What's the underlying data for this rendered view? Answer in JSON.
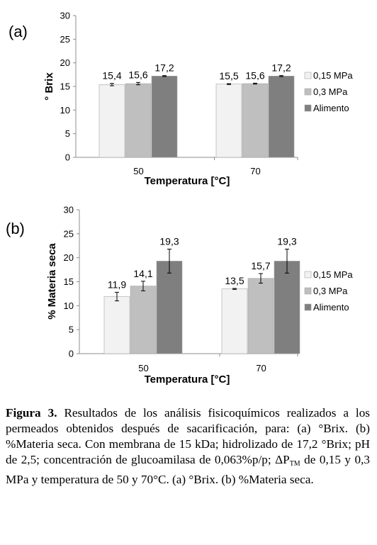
{
  "chart_data": [
    {
      "type": "bar",
      "panel_label": "(a)",
      "categories": [
        "50",
        "70"
      ],
      "series": [
        {
          "name": "0,15 MPa",
          "values": [
            15.4,
            15.5
          ],
          "labels": [
            "15,4",
            "15,5"
          ],
          "errors": [
            0.25,
            0.1
          ],
          "color": "#f2f2f2"
        },
        {
          "name": "0,3 MPa",
          "values": [
            15.6,
            15.6
          ],
          "labels": [
            "15,6",
            "15,6"
          ],
          "errors": [
            0.25,
            0.1
          ],
          "color": "#bfbfbf"
        },
        {
          "name": "Alimento",
          "values": [
            17.2,
            17.2
          ],
          "labels": [
            "17,2",
            "17,2"
          ],
          "errors": [
            0.1,
            0.1
          ],
          "color": "#7f7f7f"
        }
      ],
      "xlabel": "Temperatura [°C]",
      "ylabel": "° Brix",
      "ylim": [
        0,
        30
      ],
      "yticks": [
        "0",
        "5",
        "10",
        "15",
        "20",
        "25",
        "30"
      ],
      "grid": false,
      "legend": "right"
    },
    {
      "type": "bar",
      "panel_label": "(b)",
      "categories": [
        "50",
        "70"
      ],
      "series": [
        {
          "name": "0,15 MPa",
          "values": [
            11.9,
            13.5
          ],
          "labels": [
            "11,9",
            "13,5"
          ],
          "errors": [
            0.9,
            0.1
          ],
          "color": "#f2f2f2"
        },
        {
          "name": "0,3 MPa",
          "values": [
            14.1,
            15.7
          ],
          "labels": [
            "14,1",
            "15,7"
          ],
          "errors": [
            1.0,
            1.0
          ],
          "color": "#bfbfbf"
        },
        {
          "name": "Alimento",
          "values": [
            19.3,
            19.3
          ],
          "labels": [
            "19,3",
            "19,3"
          ],
          "errors": [
            2.5,
            2.5
          ],
          "color": "#7f7f7f"
        }
      ],
      "xlabel": "Temperatura [°C]",
      "ylabel": "% Materia seca",
      "ylim": [
        0,
        30
      ],
      "yticks": [
        "0",
        "5",
        "10",
        "15",
        "20",
        "25",
        "30"
      ],
      "grid": false,
      "legend": "right"
    }
  ],
  "caption": {
    "figure_label": "Figura 3.",
    "text_before_sub": " Resultados de los análisis fisicoquímicos realizados a los permeados obtenidos después de sacarificación, para: (a) °Brix. (b) %Materia seca. Con membrana de 15 kDa; hidrolizado de 17,2 °Brix; pH de 2,5; concentración de glucoamilasa de 0,063%p/p; ΔP",
    "subscript": "TM",
    "text_after_sub": " de 0,15 y 0,3 MPa y temperatura de 50 y 70°C. (a) °Brix. (b) %Materia seca."
  }
}
